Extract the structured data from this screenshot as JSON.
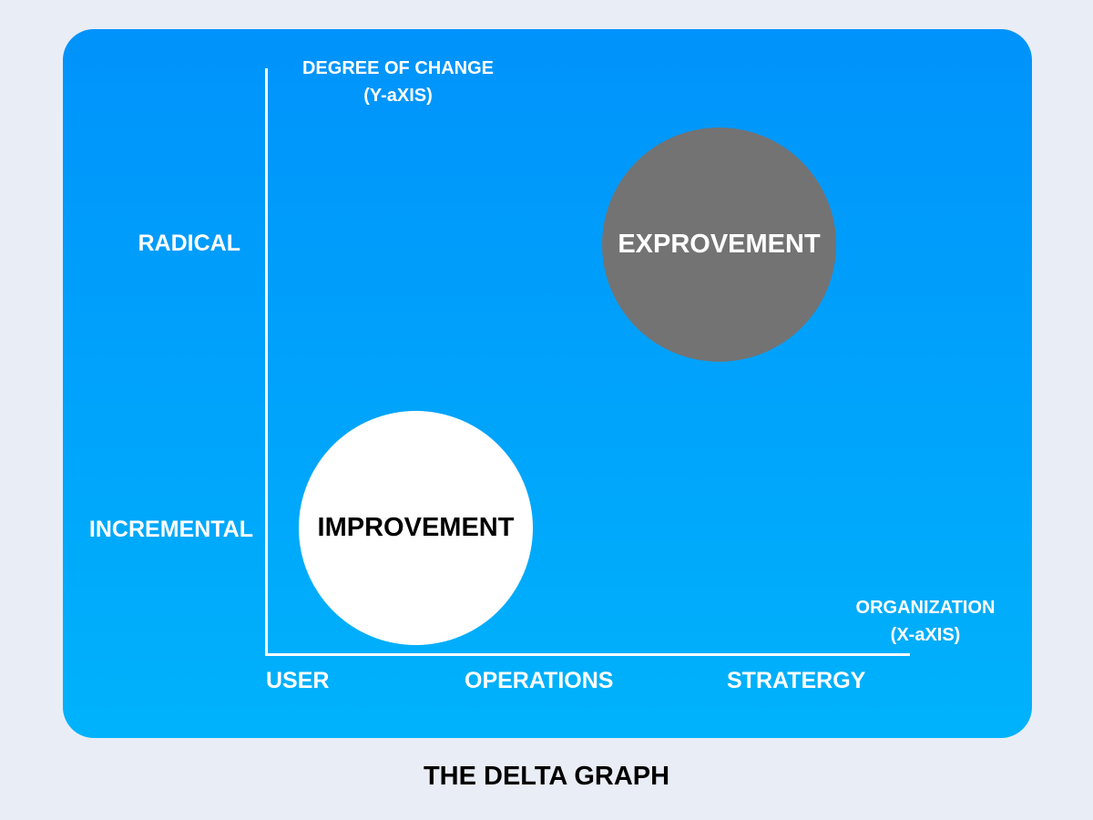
{
  "diagram": {
    "y_axis_title": {
      "line1": "DEGREE OF CHANGE",
      "line2": "(Y-aXIS)"
    },
    "x_axis_title": {
      "line1": "ORGANIZATION",
      "line2": "(X-aXIS)"
    },
    "y_levels": [
      "RADICAL",
      "INCREMENTAL"
    ],
    "x_levels": [
      "USER",
      "OPERATIONS",
      "STRATERGY"
    ],
    "bubbles": [
      {
        "label": "IMPROVEMENT",
        "x_level": "USER",
        "y_level": "INCREMENTAL",
        "color": "#ffffff"
      },
      {
        "label": "EXPROVEMENT",
        "x_level": "STRATERGY",
        "y_level": "RADICAL",
        "color": "#737373"
      }
    ],
    "panel_gradient": [
      "#0093fb",
      "#00b2fb"
    ],
    "caption": "THE DELTA GRAPH"
  }
}
